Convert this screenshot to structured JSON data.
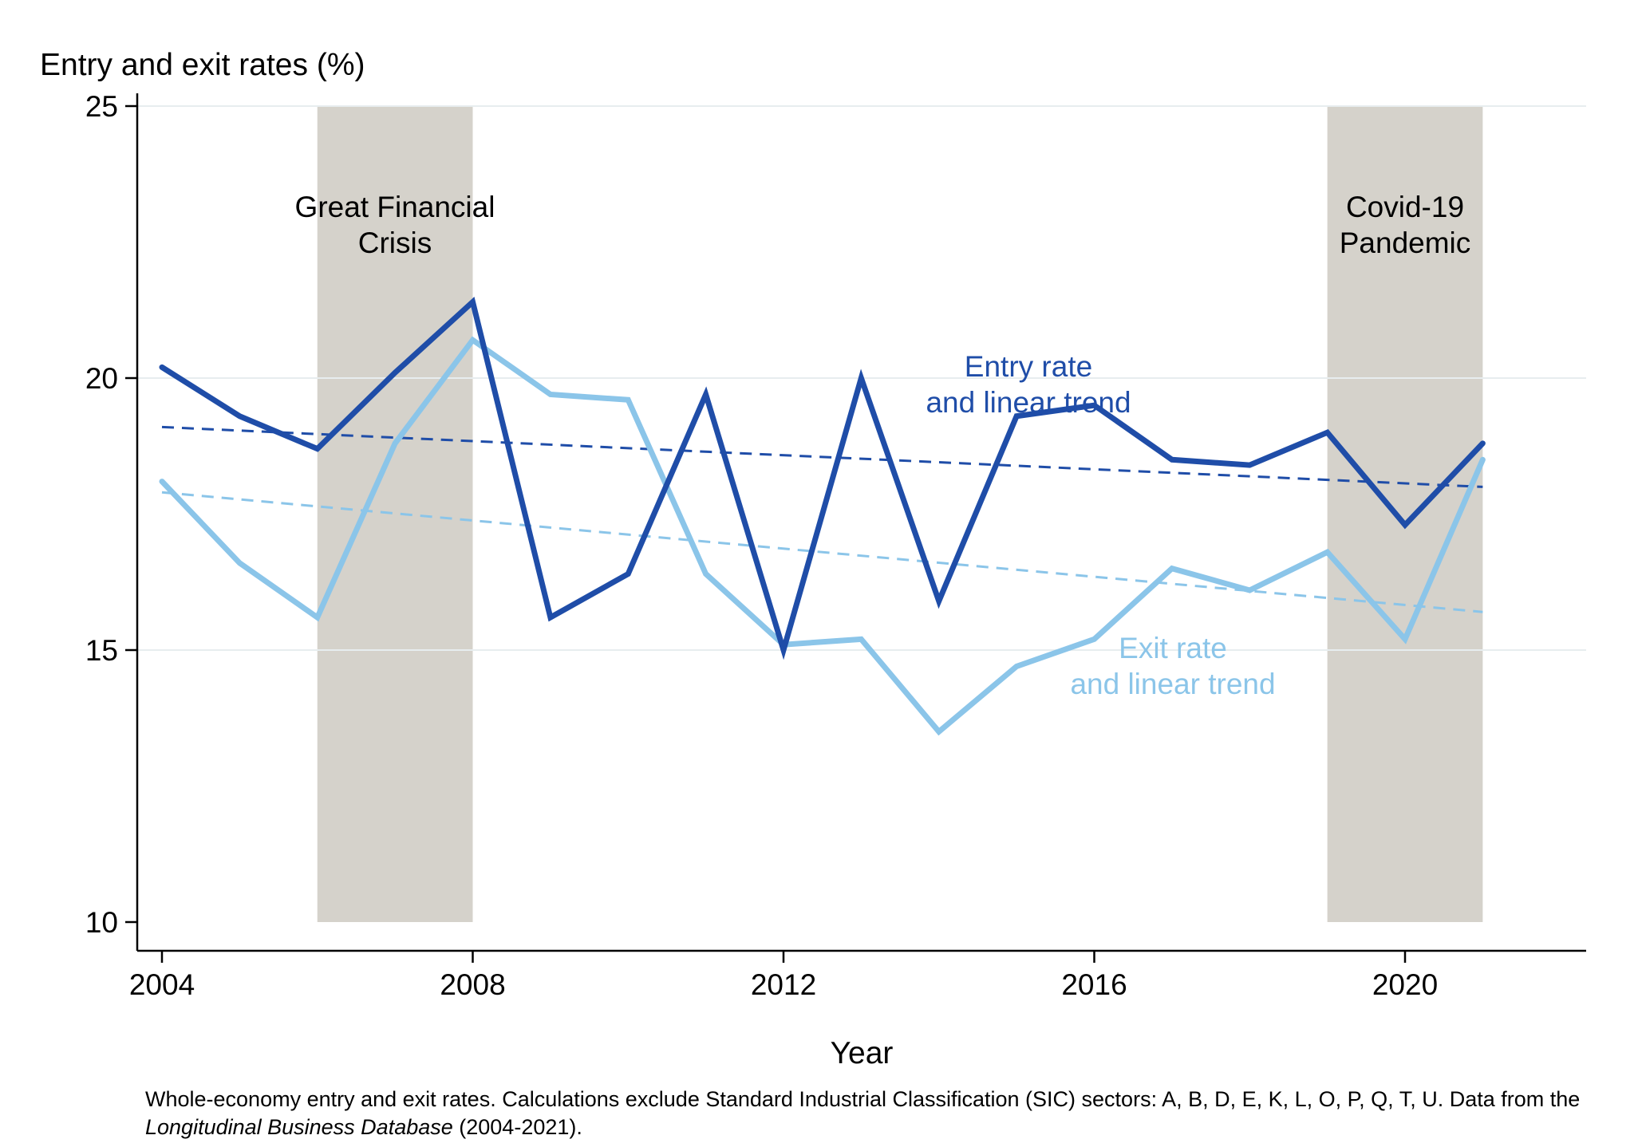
{
  "page": {
    "background": "#ffffff"
  },
  "chart_data": {
    "type": "line",
    "title": "Entry and exit rates (%)",
    "xlabel": "Year",
    "ylabel": "",
    "x": [
      2004,
      2005,
      2006,
      2007,
      2008,
      2009,
      2010,
      2011,
      2012,
      2013,
      2014,
      2015,
      2016,
      2017,
      2018,
      2019,
      2020,
      2021
    ],
    "series": [
      {
        "name": "Entry rate",
        "color": "#1F4DA8",
        "values": [
          20.2,
          19.3,
          18.7,
          20.1,
          21.4,
          15.6,
          16.4,
          19.7,
          15.0,
          20.0,
          15.9,
          19.3,
          19.5,
          18.5,
          18.4,
          19.0,
          17.3,
          18.8
        ]
      },
      {
        "name": "Exit rate",
        "color": "#8BC5E9",
        "values": [
          18.1,
          16.6,
          15.6,
          18.8,
          20.7,
          19.7,
          19.6,
          16.4,
          15.1,
          15.2,
          13.5,
          14.7,
          15.2,
          16.5,
          16.1,
          16.8,
          15.2,
          18.5
        ]
      }
    ],
    "trends": [
      {
        "name": "Entry linear trend",
        "color": "#1F4DA8",
        "start_year": 2004,
        "end_year": 2021,
        "start_value": 19.1,
        "end_value": 18.0
      },
      {
        "name": "Exit linear trend",
        "color": "#8BC5E9",
        "start_year": 2004,
        "end_year": 2021,
        "start_value": 17.9,
        "end_value": 15.7
      }
    ],
    "shaded_regions": [
      {
        "from": 2006,
        "to": 2008,
        "color": "#d5d2cb"
      },
      {
        "from": 2019,
        "to": 2021,
        "color": "#d5d2cb"
      }
    ],
    "ylim": [
      10,
      25
    ],
    "yticks": [
      10,
      15,
      20,
      25
    ],
    "xticks": [
      2004,
      2008,
      2012,
      2016,
      2020
    ],
    "grid": "horizontal",
    "gridline_color": "#e7edef",
    "axis_color": "#000000",
    "legend_position": "inline-annotations"
  },
  "annotations": {
    "gfc_line1": "Great Financial",
    "gfc_line2": "Crisis",
    "covid_line1": "Covid-19",
    "covid_line2": "Pandemic",
    "entry_label_line1": "Entry rate",
    "entry_label_line2": "and linear trend",
    "exit_label_line1": "Exit rate",
    "exit_label_line2": "and linear trend"
  },
  "caption": {
    "text_before_italic": "Whole-economy entry and exit rates. Calculations exclude Standard Industrial Classification (SIC) sectors: A, B, D, E, K, L, O, P, Q, T, U. Data from the ",
    "italic": "Longitudinal Business Database",
    "text_after_italic": " (2004-2021)."
  }
}
